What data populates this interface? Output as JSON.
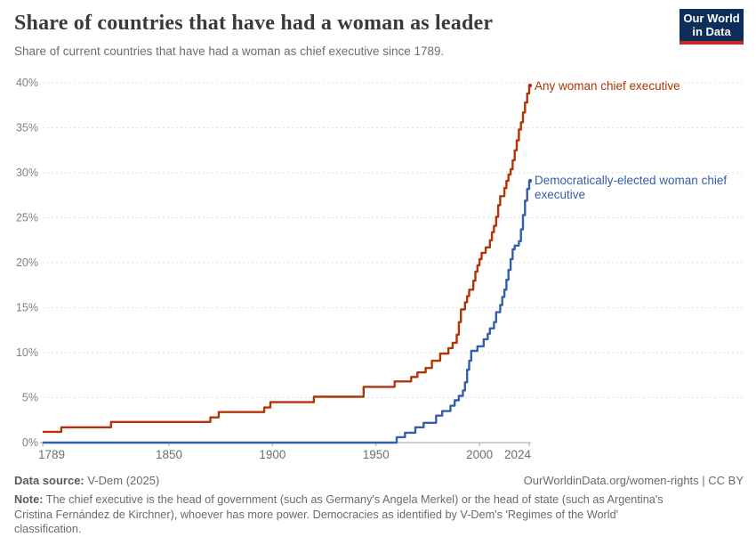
{
  "header": {
    "title": "Share of countries that have had a woman as leader",
    "subtitle": "Share of current countries that have had a woman as chief executive since 1789.",
    "logo": {
      "line1": "Our World",
      "line2": "in Data",
      "bg": "#0d2e5a",
      "accent": "#c72a22"
    }
  },
  "chart_data": {
    "type": "line",
    "step": true,
    "title": "Share of countries that have had a woman as leader",
    "subtitle": "Share of current countries that have had a woman as chief executive since 1789.",
    "x_axis": {
      "ticks": [
        1789,
        1850,
        1900,
        1950,
        2000,
        2024
      ],
      "range": [
        1789,
        2024
      ]
    },
    "y_axis": {
      "tick_values": [
        0,
        5,
        10,
        15,
        20,
        25,
        30,
        35,
        40
      ],
      "tick_labels": [
        "0%",
        "5%",
        "10%",
        "15%",
        "20%",
        "25%",
        "30%",
        "35%",
        "40%"
      ],
      "range": [
        0,
        40
      ],
      "grid": "dashed"
    },
    "legend_position": "end-of-line",
    "series": [
      {
        "name": "Any woman chief executive",
        "color": "#b13507",
        "points": [
          [
            1789,
            1.2
          ],
          [
            1798,
            1.7
          ],
          [
            1822,
            2.3
          ],
          [
            1870,
            2.8
          ],
          [
            1874,
            3.4
          ],
          [
            1896,
            3.9
          ],
          [
            1899,
            4.5
          ],
          [
            1920,
            5.1
          ],
          [
            1944,
            6.2
          ],
          [
            1959,
            6.8
          ],
          [
            1967,
            7.3
          ],
          [
            1970,
            7.8
          ],
          [
            1974,
            8.3
          ],
          [
            1977,
            9.1
          ],
          [
            1981,
            9.9
          ],
          [
            1985,
            10.5
          ],
          [
            1987,
            11.1
          ],
          [
            1989,
            12.0
          ],
          [
            1990,
            13.4
          ],
          [
            1991,
            14.8
          ],
          [
            1993,
            15.6
          ],
          [
            1994,
            16.3
          ],
          [
            1995,
            17.0
          ],
          [
            1997,
            18.0
          ],
          [
            1998,
            19.0
          ],
          [
            1999,
            19.7
          ],
          [
            2000,
            20.4
          ],
          [
            2001,
            21.1
          ],
          [
            2003,
            21.7
          ],
          [
            2005,
            22.5
          ],
          [
            2006,
            23.4
          ],
          [
            2007,
            24.1
          ],
          [
            2008,
            25.1
          ],
          [
            2009,
            26.4
          ],
          [
            2010,
            27.4
          ],
          [
            2012,
            28.3
          ],
          [
            2013,
            29.1
          ],
          [
            2014,
            29.8
          ],
          [
            2015,
            30.4
          ],
          [
            2016,
            31.4
          ],
          [
            2017,
            32.5
          ],
          [
            2018,
            33.6
          ],
          [
            2019,
            34.8
          ],
          [
            2020,
            35.6
          ],
          [
            2021,
            36.7
          ],
          [
            2022,
            37.8
          ],
          [
            2023,
            38.8
          ],
          [
            2024,
            39.7
          ]
        ]
      },
      {
        "name": "Democratically-elected woman chief executive",
        "color": "#3360a9",
        "points": [
          [
            1789,
            0.0
          ],
          [
            1960,
            0.6
          ],
          [
            1964,
            1.1
          ],
          [
            1969,
            1.7
          ],
          [
            1973,
            2.2
          ],
          [
            1979,
            3.0
          ],
          [
            1982,
            3.5
          ],
          [
            1986,
            4.1
          ],
          [
            1988,
            4.7
          ],
          [
            1990,
            5.2
          ],
          [
            1992,
            5.8
          ],
          [
            1993,
            6.7
          ],
          [
            1994,
            8.1
          ],
          [
            1995,
            9.1
          ],
          [
            1996,
            10.2
          ],
          [
            1999,
            10.7
          ],
          [
            2002,
            11.5
          ],
          [
            2004,
            12.1
          ],
          [
            2005,
            12.7
          ],
          [
            2007,
            13.4
          ],
          [
            2008,
            14.5
          ],
          [
            2010,
            15.3
          ],
          [
            2011,
            16.2
          ],
          [
            2012,
            17.0
          ],
          [
            2013,
            18.1
          ],
          [
            2014,
            19.2
          ],
          [
            2015,
            20.4
          ],
          [
            2016,
            21.5
          ],
          [
            2017,
            21.9
          ],
          [
            2019,
            22.4
          ],
          [
            2020,
            23.7
          ],
          [
            2021,
            25.3
          ],
          [
            2022,
            26.9
          ],
          [
            2023,
            28.2
          ],
          [
            2024,
            29.1
          ]
        ]
      }
    ]
  },
  "footer": {
    "source_label": "Data source:",
    "source_value": " V-Dem (2025)",
    "citation": "OurWorldinData.org/women-rights | CC BY",
    "note_label": "Note:",
    "note_value": " The chief executive is the head of government (such as Germany's Angela Merkel) or the head of state (such as Argentina's Cristina Fernández de Kirchner), whoever has more power. Democracies as identified by V-Dem's 'Regimes of the World' classification."
  }
}
